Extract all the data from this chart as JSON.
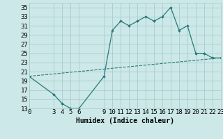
{
  "xlabel": "Humidex (Indice chaleur)",
  "background_color": "#cce8e8",
  "grid_color": "#aacccc",
  "line_color": "#2a7a7a",
  "xlim": [
    0,
    23
  ],
  "ylim": [
    13,
    36
  ],
  "yticks": [
    13,
    15,
    17,
    19,
    21,
    23,
    25,
    27,
    29,
    31,
    33,
    35
  ],
  "xticks": [
    0,
    3,
    4,
    5,
    6,
    9,
    10,
    11,
    12,
    13,
    14,
    15,
    16,
    17,
    18,
    19,
    20,
    21,
    22,
    23
  ],
  "series1_x": [
    0,
    3,
    4,
    5,
    6,
    9,
    10,
    11,
    12,
    13,
    14,
    15,
    16,
    17,
    18,
    19,
    20,
    21,
    22,
    23
  ],
  "series1_y": [
    20,
    16,
    14,
    13,
    13,
    20,
    30,
    32,
    31,
    32,
    33,
    32,
    33,
    35,
    30,
    31,
    25,
    25,
    24,
    24
  ],
  "series2_x": [
    0,
    23
  ],
  "series2_y": [
    20,
    24
  ],
  "font_family": "monospace",
  "fontsize_label": 7,
  "fontsize_tick": 6.5
}
